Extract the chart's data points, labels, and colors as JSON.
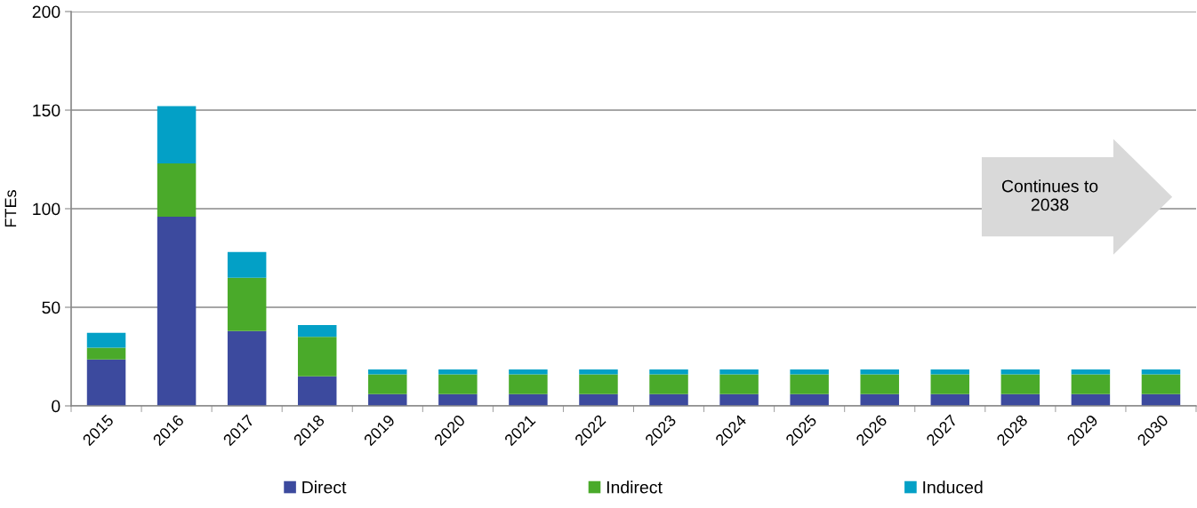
{
  "chart_data": {
    "type": "bar",
    "stacked": true,
    "ylabel": "FTEs",
    "categories": [
      "2015",
      "2016",
      "2017",
      "2018",
      "2019",
      "2020",
      "2021",
      "2022",
      "2023",
      "2024",
      "2025",
      "2026",
      "2027",
      "2028",
      "2029",
      "2030"
    ],
    "series": [
      {
        "name": "Direct",
        "color": "#3c4a9e",
        "values": [
          23.5,
          96,
          38,
          15,
          6,
          6,
          6,
          6,
          6,
          6,
          6,
          6,
          6,
          6,
          6,
          6
        ]
      },
      {
        "name": "Indirect",
        "color": "#4aaa2a",
        "values": [
          6,
          27,
          27,
          20,
          10,
          10,
          10,
          10,
          10,
          10,
          10,
          10,
          10,
          10,
          10,
          10
        ]
      },
      {
        "name": "Induced",
        "color": "#03a0c6",
        "values": [
          7.5,
          29,
          13,
          6,
          2.5,
          2.5,
          2.5,
          2.5,
          2.5,
          2.5,
          2.5,
          2.5,
          2.5,
          2.5,
          2.5,
          2.5
        ]
      }
    ],
    "ylim": [
      0,
      200
    ],
    "yticks": [
      0,
      50,
      100,
      150,
      200
    ],
    "grid": "y",
    "legend": "bottom",
    "annotations": [
      "Continues to\n2038"
    ]
  }
}
